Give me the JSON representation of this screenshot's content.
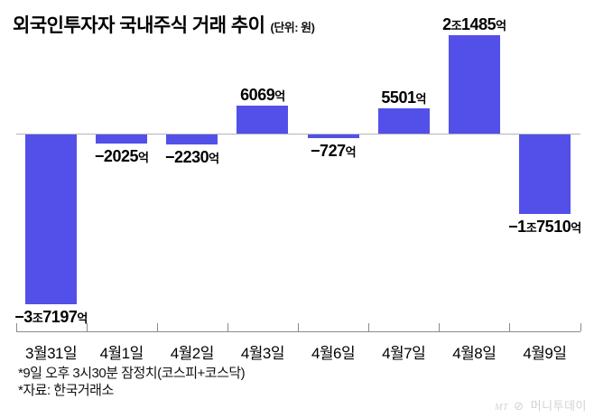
{
  "title": {
    "text": "외국인투자자 국내주식 거래 추이",
    "unit_label": "(단위: 원)"
  },
  "chart_data": {
    "type": "bar",
    "title": "외국인투자자 국내주식 거래 추이",
    "unit": "원",
    "categories": [
      "3월31일",
      "4월1일",
      "4월2일",
      "4월3일",
      "4월6일",
      "4월7일",
      "4월8일",
      "4월9일"
    ],
    "values_eok": [
      -37197,
      -2025,
      -2230,
      6069,
      -727,
      5501,
      21485,
      -17510
    ],
    "value_labels": [
      "-3조7197억",
      "-2025억",
      "-2230억",
      "6069억",
      "-727억",
      "5501억",
      "2조1485억",
      "-1조7510억"
    ],
    "value_label_segments": [
      [
        {
          "t": "−3",
          "lg": true
        },
        {
          "t": "조",
          "lg": false
        },
        {
          "t": "7197",
          "lg": true
        },
        {
          "t": "억",
          "lg": false
        }
      ],
      [
        {
          "t": "−2025",
          "lg": true
        },
        {
          "t": "억",
          "lg": false
        }
      ],
      [
        {
          "t": "−2230",
          "lg": true
        },
        {
          "t": "억",
          "lg": false
        }
      ],
      [
        {
          "t": "6069",
          "lg": true
        },
        {
          "t": "억",
          "lg": false
        }
      ],
      [
        {
          "t": "−727",
          "lg": true
        },
        {
          "t": "억",
          "lg": false
        }
      ],
      [
        {
          "t": "5501",
          "lg": true
        },
        {
          "t": "억",
          "lg": false
        }
      ],
      [
        {
          "t": "2",
          "lg": true
        },
        {
          "t": "조",
          "lg": false
        },
        {
          "t": "1485",
          "lg": true
        },
        {
          "t": "억",
          "lg": false
        }
      ],
      [
        {
          "t": "−1",
          "lg": true
        },
        {
          "t": "조",
          "lg": false
        },
        {
          "t": "7510",
          "lg": true
        },
        {
          "t": "억",
          "lg": false
        }
      ]
    ],
    "bar_color": "#5350e9",
    "baseline_value": 0,
    "ylim": [
      -40000,
      25000
    ],
    "grid": false,
    "legend": "none"
  },
  "footnotes": {
    "line1": "*9일 오후 3시30분 잠정치(코스피+코스닥)",
    "line2": "*자료: 한국거래소"
  },
  "logo": {
    "mt": "MT",
    "symbol": "⊘",
    "name": "머니투데이"
  }
}
